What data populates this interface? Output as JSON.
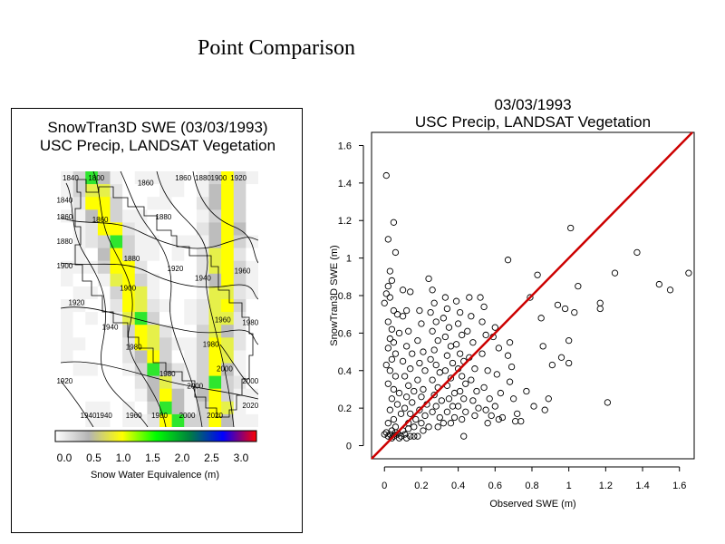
{
  "page_title": "Point Comparison",
  "map": {
    "title_line1": "SnowTran3D SWE (03/03/1993)",
    "title_line2": "USC Precip, LANDSAT Vegetation",
    "colorbar_ticks": [
      "0.0",
      "0.5",
      "1.0",
      "1.5",
      "2.0",
      "2.5",
      "3.0"
    ],
    "colorbar_label": "Snow Water Equivalence (m)",
    "colorbar_colors": [
      "#ffffff",
      "#b4b4b4",
      "#ffff00",
      "#00ff00",
      "#008040",
      "#0000ff",
      "#ff0000"
    ],
    "contour_labels": [
      {
        "text": "1840",
        "row": 0.0,
        "col": 0.05
      },
      {
        "text": "1800",
        "row": 0.0,
        "col": 0.18
      },
      {
        "text": "1860",
        "row": 0.02,
        "col": 0.43
      },
      {
        "text": "1860",
        "row": 0.0,
        "col": 0.62
      },
      {
        "text": "1880",
        "row": 0.0,
        "col": 0.72
      },
      {
        "text": "1900",
        "row": 0.0,
        "col": 0.8
      },
      {
        "text": "1920",
        "row": 0.0,
        "col": 0.9
      },
      {
        "text": "1840",
        "row": 0.09,
        "col": 0.02
      },
      {
        "text": "1860",
        "row": 0.16,
        "col": 0.02
      },
      {
        "text": "1860",
        "row": 0.17,
        "col": 0.2
      },
      {
        "text": "1880",
        "row": 0.16,
        "col": 0.52
      },
      {
        "text": "1880",
        "row": 0.26,
        "col": 0.02
      },
      {
        "text": "1880",
        "row": 0.33,
        "col": 0.36
      },
      {
        "text": "1900",
        "row": 0.36,
        "col": 0.02
      },
      {
        "text": "1920",
        "row": 0.37,
        "col": 0.58
      },
      {
        "text": "1940",
        "row": 0.41,
        "col": 0.72
      },
      {
        "text": "1960",
        "row": 0.38,
        "col": 0.92
      },
      {
        "text": "1900",
        "row": 0.45,
        "col": 0.34
      },
      {
        "text": "1920",
        "row": 0.51,
        "col": 0.08
      },
      {
        "text": "1960",
        "row": 0.58,
        "col": 0.82
      },
      {
        "text": "1980",
        "row": 0.59,
        "col": 0.96
      },
      {
        "text": "1940",
        "row": 0.61,
        "col": 0.25
      },
      {
        "text": "1980",
        "row": 0.69,
        "col": 0.37
      },
      {
        "text": "1980",
        "row": 0.68,
        "col": 0.76
      },
      {
        "text": "2000",
        "row": 0.78,
        "col": 0.83
      },
      {
        "text": "1980",
        "row": 0.8,
        "col": 0.54
      },
      {
        "text": "1920",
        "row": 0.83,
        "col": 0.02
      },
      {
        "text": "2000",
        "row": 0.85,
        "col": 0.68
      },
      {
        "text": "2000",
        "row": 0.83,
        "col": 0.96
      },
      {
        "text": "2020",
        "row": 0.93,
        "col": 0.96
      },
      {
        "text": "1940",
        "row": 0.97,
        "col": 0.14
      },
      {
        "text": "1940",
        "row": 0.97,
        "col": 0.22
      },
      {
        "text": "1960",
        "row": 0.97,
        "col": 0.37
      },
      {
        "text": "1980",
        "row": 0.97,
        "col": 0.5
      },
      {
        "text": "2000",
        "row": 0.97,
        "col": 0.64
      },
      {
        "text": "2020",
        "row": 0.97,
        "col": 0.78
      }
    ]
  },
  "chart_data": {
    "type": "scatter",
    "title_line1": "03/03/1993",
    "title_line2": "USC Precip, LANDSAT Vegetation",
    "xlabel": "Observed SWE (m)",
    "ylabel": "SnowTran3D SWE (m)",
    "xlim": [
      -0.07,
      1.68
    ],
    "ylim": [
      -0.07,
      1.67
    ],
    "xticks": [
      0,
      0.2,
      0.4,
      0.6,
      0.8,
      1,
      1.2,
      1.4,
      1.6
    ],
    "xtick_labels": [
      "0",
      "0.2",
      "0.4",
      "0.6",
      "0.8",
      "1",
      "1.2",
      "1.4",
      "1.6"
    ],
    "yticks": [
      0,
      0.2,
      0.4,
      0.6,
      0.8,
      1,
      1.2,
      1.4,
      1.6
    ],
    "ytick_labels": [
      "0",
      "0.2",
      "0.4",
      "0.6",
      "0.8",
      "1",
      "1.2",
      "1.4",
      "1.6"
    ],
    "one_to_one_line": {
      "from": [
        -0.07,
        -0.07
      ],
      "to": [
        1.67,
        1.67
      ],
      "color": "#cc0000"
    },
    "marker": "open-circle",
    "points": [
      [
        0.01,
        1.44
      ],
      [
        0.05,
        1.19
      ],
      [
        0.02,
        1.1
      ],
      [
        0.06,
        1.03
      ],
      [
        0.03,
        0.93
      ],
      [
        0.04,
        0.88
      ],
      [
        0.02,
        0.85
      ],
      [
        0.01,
        0.81
      ],
      [
        0.03,
        0.79
      ],
      [
        0.0,
        0.76
      ],
      [
        0.05,
        0.72
      ],
      [
        0.07,
        0.7
      ],
      [
        0.02,
        0.66
      ],
      [
        0.04,
        0.62
      ],
      [
        0.03,
        0.57
      ],
      [
        0.05,
        0.55
      ],
      [
        0.02,
        0.52
      ],
      [
        0.06,
        0.49
      ],
      [
        0.04,
        0.46
      ],
      [
        0.01,
        0.43
      ],
      [
        0.03,
        0.4
      ],
      [
        0.06,
        0.37
      ],
      [
        0.02,
        0.33
      ],
      [
        0.05,
        0.3
      ],
      [
        0.08,
        0.28
      ],
      [
        0.04,
        0.25
      ],
      [
        0.07,
        0.22
      ],
      [
        0.03,
        0.19
      ],
      [
        0.09,
        0.17
      ],
      [
        0.05,
        0.14
      ],
      [
        0.02,
        0.12
      ],
      [
        0.06,
        0.1
      ],
      [
        0.04,
        0.08
      ],
      [
        0.01,
        0.07
      ],
      [
        0.03,
        0.06
      ],
      [
        0.07,
        0.06
      ],
      [
        0.02,
        0.05
      ],
      [
        0.05,
        0.05
      ],
      [
        0.09,
        0.05
      ],
      [
        0.11,
        0.06
      ],
      [
        0.0,
        0.06
      ],
      [
        0.04,
        0.04
      ],
      [
        0.08,
        0.04
      ],
      [
        0.12,
        0.04
      ],
      [
        0.14,
        0.05
      ],
      [
        0.06,
        0.07
      ],
      [
        0.1,
        0.08
      ],
      [
        0.13,
        0.09
      ],
      [
        0.16,
        0.05
      ],
      [
        0.18,
        0.05
      ],
      [
        0.1,
        0.83
      ],
      [
        0.14,
        0.82
      ],
      [
        0.12,
        0.72
      ],
      [
        0.1,
        0.69
      ],
      [
        0.13,
        0.61
      ],
      [
        0.08,
        0.6
      ],
      [
        0.12,
        0.53
      ],
      [
        0.15,
        0.49
      ],
      [
        0.1,
        0.45
      ],
      [
        0.14,
        0.41
      ],
      [
        0.11,
        0.37
      ],
      [
        0.13,
        0.32
      ],
      [
        0.16,
        0.29
      ],
      [
        0.12,
        0.26
      ],
      [
        0.15,
        0.23
      ],
      [
        0.11,
        0.2
      ],
      [
        0.14,
        0.17
      ],
      [
        0.17,
        0.14
      ],
      [
        0.13,
        0.12
      ],
      [
        0.16,
        0.1
      ],
      [
        0.19,
        0.72
      ],
      [
        0.2,
        0.65
      ],
      [
        0.18,
        0.56
      ],
      [
        0.21,
        0.5
      ],
      [
        0.19,
        0.44
      ],
      [
        0.22,
        0.4
      ],
      [
        0.18,
        0.35
      ],
      [
        0.21,
        0.3
      ],
      [
        0.2,
        0.26
      ],
      [
        0.23,
        0.22
      ],
      [
        0.19,
        0.19
      ],
      [
        0.22,
        0.16
      ],
      [
        0.2,
        0.12
      ],
      [
        0.24,
        0.1
      ],
      [
        0.21,
        0.08
      ],
      [
        0.24,
        0.89
      ],
      [
        0.26,
        0.83
      ],
      [
        0.27,
        0.76
      ],
      [
        0.25,
        0.71
      ],
      [
        0.28,
        0.66
      ],
      [
        0.26,
        0.61
      ],
      [
        0.29,
        0.56
      ],
      [
        0.27,
        0.51
      ],
      [
        0.25,
        0.46
      ],
      [
        0.28,
        0.43
      ],
      [
        0.3,
        0.39
      ],
      [
        0.26,
        0.35
      ],
      [
        0.29,
        0.31
      ],
      [
        0.27,
        0.27
      ],
      [
        0.31,
        0.24
      ],
      [
        0.28,
        0.21
      ],
      [
        0.26,
        0.18
      ],
      [
        0.3,
        0.15
      ],
      [
        0.32,
        0.12
      ],
      [
        0.29,
        0.1
      ],
      [
        0.33,
        0.79
      ],
      [
        0.34,
        0.73
      ],
      [
        0.32,
        0.68
      ],
      [
        0.35,
        0.63
      ],
      [
        0.33,
        0.58
      ],
      [
        0.36,
        0.53
      ],
      [
        0.34,
        0.48
      ],
      [
        0.37,
        0.44
      ],
      [
        0.33,
        0.4
      ],
      [
        0.36,
        0.36
      ],
      [
        0.34,
        0.32
      ],
      [
        0.38,
        0.28
      ],
      [
        0.35,
        0.25
      ],
      [
        0.37,
        0.21
      ],
      [
        0.34,
        0.18
      ],
      [
        0.38,
        0.15
      ],
      [
        0.36,
        0.12
      ],
      [
        0.39,
        0.77
      ],
      [
        0.41,
        0.71
      ],
      [
        0.4,
        0.65
      ],
      [
        0.42,
        0.59
      ],
      [
        0.39,
        0.54
      ],
      [
        0.41,
        0.49
      ],
      [
        0.43,
        0.45
      ],
      [
        0.4,
        0.41
      ],
      [
        0.42,
        0.37
      ],
      [
        0.44,
        0.33
      ],
      [
        0.41,
        0.29
      ],
      [
        0.43,
        0.25
      ],
      [
        0.4,
        0.21
      ],
      [
        0.44,
        0.18
      ],
      [
        0.42,
        0.14
      ],
      [
        0.43,
        0.05
      ],
      [
        0.46,
        0.79
      ],
      [
        0.47,
        0.69
      ],
      [
        0.45,
        0.61
      ],
      [
        0.48,
        0.55
      ],
      [
        0.46,
        0.47
      ],
      [
        0.49,
        0.41
      ],
      [
        0.47,
        0.35
      ],
      [
        0.5,
        0.29
      ],
      [
        0.48,
        0.24
      ],
      [
        0.51,
        0.2
      ],
      [
        0.49,
        0.16
      ],
      [
        0.52,
        0.79
      ],
      [
        0.54,
        0.74
      ],
      [
        0.53,
        0.66
      ],
      [
        0.55,
        0.59
      ],
      [
        0.53,
        0.49
      ],
      [
        0.56,
        0.4
      ],
      [
        0.54,
        0.31
      ],
      [
        0.57,
        0.25
      ],
      [
        0.55,
        0.19
      ],
      [
        0.58,
        0.16
      ],
      [
        0.56,
        0.12
      ],
      [
        0.59,
        0.58
      ],
      [
        0.6,
        0.63
      ],
      [
        0.62,
        0.52
      ],
      [
        0.61,
        0.38
      ],
      [
        0.63,
        0.28
      ],
      [
        0.6,
        0.21
      ],
      [
        0.64,
        0.15
      ],
      [
        0.62,
        0.14
      ],
      [
        0.67,
        0.99
      ],
      [
        0.68,
        0.55
      ],
      [
        0.67,
        0.48
      ],
      [
        0.69,
        0.42
      ],
      [
        0.68,
        0.34
      ],
      [
        0.7,
        0.25
      ],
      [
        0.72,
        0.17
      ],
      [
        0.71,
        0.13
      ],
      [
        0.74,
        0.13
      ],
      [
        0.77,
        0.29
      ],
      [
        0.79,
        0.79
      ],
      [
        0.81,
        0.21
      ],
      [
        0.83,
        0.91
      ],
      [
        0.85,
        0.68
      ],
      [
        0.86,
        0.53
      ],
      [
        0.87,
        0.19
      ],
      [
        0.89,
        0.25
      ],
      [
        0.91,
        0.43
      ],
      [
        0.94,
        0.75
      ],
      [
        0.96,
        0.47
      ],
      [
        0.98,
        0.73
      ],
      [
        1.0,
        0.56
      ],
      [
        1.01,
        1.16
      ],
      [
        1.03,
        0.71
      ],
      [
        1.05,
        0.85
      ],
      [
        1.0,
        0.44
      ],
      [
        1.17,
        0.73
      ],
      [
        1.17,
        0.76
      ],
      [
        1.21,
        0.23
      ],
      [
        1.25,
        0.92
      ],
      [
        1.37,
        1.03
      ],
      [
        1.49,
        0.86
      ],
      [
        1.55,
        0.83
      ],
      [
        1.65,
        0.92
      ]
    ]
  }
}
